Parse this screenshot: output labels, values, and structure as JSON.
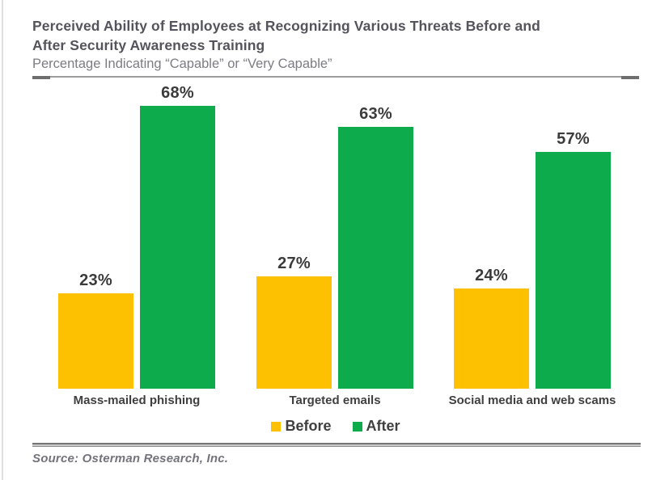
{
  "chart": {
    "title": "Perceived Ability of Employees at Recognizing Various Threats Before and\nAfter Security Awareness Training",
    "subtitle": "Percentage Indicating “Capable” or “Very Capable”"
  },
  "chart_data": {
    "type": "bar",
    "title": "Perceived Ability of Employees at Recognizing Various Threats Before and After Security Awareness Training",
    "subtitle": "Percentage Indicating “Capable” or “Very Capable”",
    "categories": [
      "Mass-mailed phishing",
      "Targeted emails",
      "Social media and web scams"
    ],
    "series": [
      {
        "name": "Before",
        "color": "#FDC101",
        "values": [
          23,
          27,
          24
        ]
      },
      {
        "name": "After",
        "color": "#0DAB4C",
        "values": [
          68,
          63,
          57
        ]
      }
    ],
    "value_suffix": "%",
    "ylim": [
      0,
      100
    ],
    "axes_hidden": true,
    "grid": false,
    "legend_position": "bottom",
    "value_label_color": "#3b3b3b"
  },
  "footer": {
    "source": "Source: Osterman Research, Inc."
  }
}
